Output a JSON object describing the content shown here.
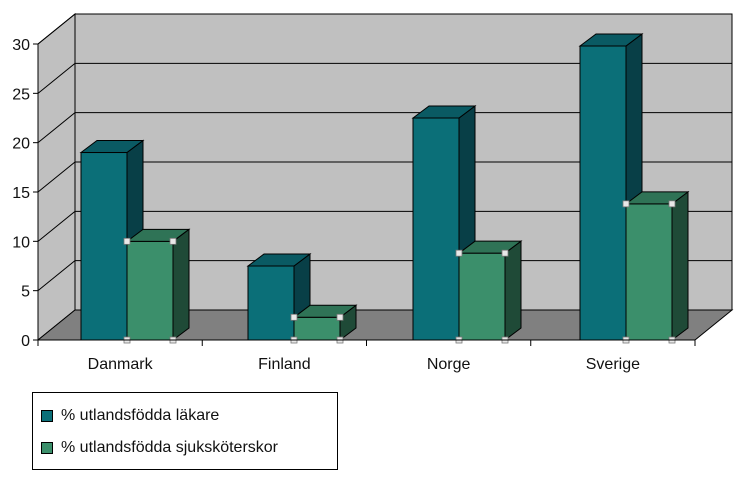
{
  "chart_data": {
    "type": "bar",
    "categories": [
      "Danmark",
      "Finland",
      "Norge",
      "Sverige"
    ],
    "series": [
      {
        "name": "% utlandsfödda läkare",
        "values": [
          19,
          7.5,
          22.5,
          29.8
        ],
        "color": "#0b6f78",
        "side_color": "#083f47",
        "top_color": "#0a5a63"
      },
      {
        "name": "% utlandsfödda sjuksköterskor",
        "values": [
          10,
          2.3,
          8.8,
          13.8
        ],
        "color": "#3b8f6b",
        "side_color": "#1f4a37",
        "top_color": "#2f7356"
      }
    ],
    "yticks": [
      0,
      5,
      10,
      15,
      20,
      25,
      30
    ],
    "ylim": [
      0,
      30
    ],
    "grid": true,
    "legend": "bottom-left",
    "wall_color": "#c0c0c0",
    "floor_color": "#808080"
  }
}
